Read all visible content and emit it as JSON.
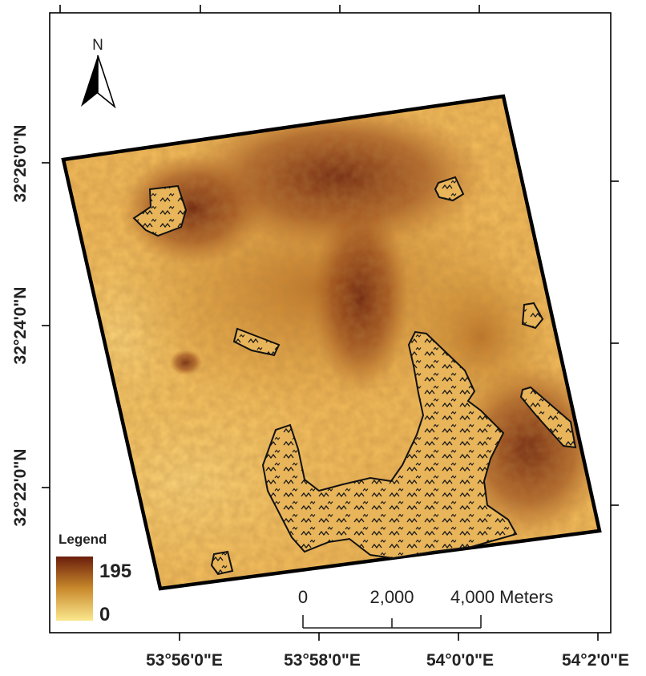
{
  "north_arrow": {
    "label": "N"
  },
  "legend": {
    "title": "Legend",
    "max_label": "195",
    "min_label": "0",
    "max_value": 195,
    "min_value": 0,
    "color_high": "#6b1e0c",
    "color_mid": "#c98a2c",
    "color_low": "#fbe88e"
  },
  "scale_bar": {
    "labels": [
      "0",
      "2,000",
      "4,000 Meters"
    ],
    "values_m": [
      0,
      2000,
      4000
    ]
  },
  "axes": {
    "longitude_ticks": [
      "53°56'0\"E",
      "53°58'0\"E",
      "54°0'0\"E",
      "54°2'0\"E"
    ],
    "latitude_ticks": [
      "32°26'0\"N",
      "32°24'0\"N",
      "32°22'0\"N"
    ]
  },
  "colors": {
    "frame": "#000000",
    "polygon_outline": "#111111",
    "hatch": "#1a1a1a"
  }
}
